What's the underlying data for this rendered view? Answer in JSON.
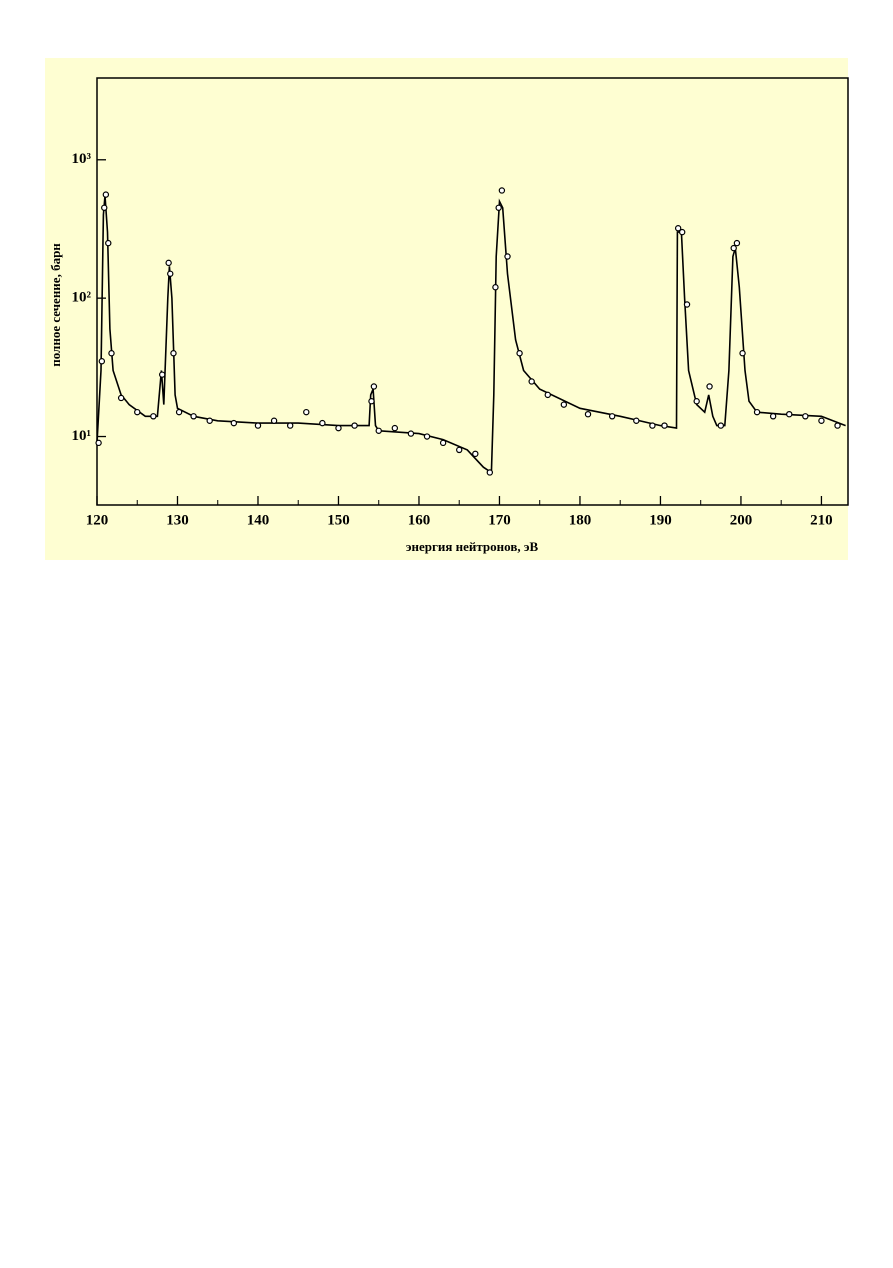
{
  "chart_data": {
    "type": "line",
    "xlabel": "энергия нейтронов, эВ",
    "ylabel": "полное сечение, барн",
    "xlim": [
      120,
      213.3
    ],
    "ylim": [
      3.2,
      3900
    ],
    "log_y": true,
    "xticks": [
      120,
      130,
      140,
      150,
      160,
      170,
      180,
      190,
      200,
      210
    ],
    "xminorticks": [
      125,
      135,
      145,
      155,
      165,
      175,
      185,
      195,
      205
    ],
    "yticks": [
      {
        "value": 10,
        "label": "10¹"
      },
      {
        "value": 100,
        "label": "10²"
      },
      {
        "value": 1000,
        "label": "10³"
      }
    ],
    "series": [
      {
        "style": "line",
        "color": "#000000",
        "x": [
          120,
          120.5,
          120.8,
          121.0,
          121.3,
          121.6,
          122,
          123,
          124,
          126,
          127.5,
          128,
          128.3,
          128.8,
          129,
          129.3,
          129.7,
          130,
          132,
          135,
          140,
          145,
          150,
          153.8,
          154,
          154.3,
          154.6,
          155,
          160,
          163,
          166,
          168,
          169,
          169.3,
          169.6,
          170,
          170.4,
          171,
          172,
          173,
          175,
          180,
          185,
          190,
          192,
          192.1,
          192.6,
          193,
          193.5,
          194.5,
          195.5,
          196,
          196.5,
          197,
          198,
          198.5,
          199,
          199.3,
          199.8,
          200.5,
          201,
          202,
          205,
          210,
          213
        ],
        "values": [
          9,
          30,
          400,
          550,
          300,
          60,
          30,
          20,
          17,
          14,
          14,
          30,
          17,
          100,
          170,
          100,
          20,
          16,
          14,
          13,
          12.5,
          12.5,
          12,
          12,
          20,
          22,
          12,
          11,
          10.5,
          9.5,
          8,
          6,
          5.5,
          20,
          200,
          500,
          450,
          150,
          50,
          30,
          22,
          16,
          14,
          12,
          11.5,
          300,
          300,
          100,
          30,
          17,
          15,
          20,
          14,
          12,
          12,
          30,
          200,
          230,
          120,
          30,
          18,
          15,
          14.5,
          14,
          12
        ]
      },
      {
        "style": "points",
        "color": "#000000",
        "x": [
          120.2,
          120.6,
          120.9,
          121.1,
          121.4,
          121.8,
          123,
          125,
          127,
          128.1,
          128.9,
          129.1,
          129.5,
          130.2,
          132,
          134,
          137,
          140,
          142,
          144,
          146,
          148,
          150,
          152,
          154.1,
          154.4,
          155,
          157,
          159,
          161,
          163,
          165,
          167,
          168.8,
          169.5,
          169.9,
          170.3,
          171,
          172.5,
          174,
          176,
          178,
          181,
          184,
          187,
          189,
          190.5,
          192.2,
          192.7,
          193.3,
          194.5,
          196.1,
          197.5,
          199.1,
          199.5,
          200.2,
          202,
          204,
          206,
          208,
          210,
          212
        ],
        "values": [
          9,
          35,
          450,
          560,
          250,
          40,
          19,
          15,
          14,
          28,
          180,
          150,
          40,
          15,
          14,
          13,
          12.5,
          12,
          13,
          12,
          15,
          12.5,
          11.5,
          12,
          18,
          23,
          11,
          11.5,
          10.5,
          10,
          9,
          8,
          7.5,
          5.5,
          120,
          450,
          600,
          200,
          40,
          25,
          20,
          17,
          14.5,
          14,
          13,
          12,
          12,
          320,
          300,
          90,
          18,
          23,
          12,
          230,
          250,
          40,
          15,
          14,
          14.5,
          14,
          13,
          12
        ]
      }
    ]
  }
}
